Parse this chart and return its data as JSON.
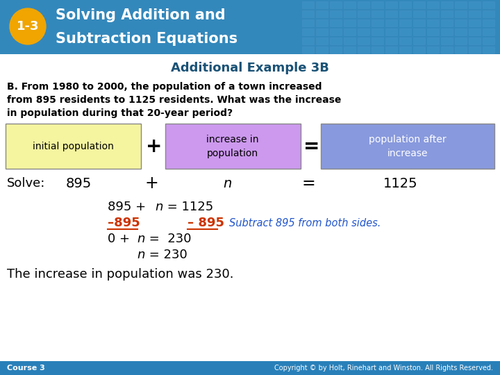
{
  "header_bg_color": "#3388bb",
  "badge_bg": "#f0a500",
  "badge_text": "1-3",
  "subtitle": "Additional Example 3B",
  "subtitle_color": "#1a5276",
  "body_text_line1": "B. From 1980 to 2000, the population of a town increased",
  "body_text_line2": "from 895 residents to 1125 residents. What was the increase",
  "body_text_line3": "in population during that 20-year period?",
  "box1_color": "#f5f5a0",
  "box1_text": "initial population",
  "box2_color": "#cc99ee",
  "box2_text": "increase in\npopulation",
  "box3_color": "#8899dd",
  "box3_text": "population after\nincrease",
  "footer_left": "Course 3",
  "footer_right": "Copyright © by Holt, Rinehart and Winston. All Rights Reserved.",
  "footer_bg": "#2980b9",
  "bg_color": "#ffffff",
  "red_color": "#cc3300",
  "blue_italic_color": "#2255cc"
}
